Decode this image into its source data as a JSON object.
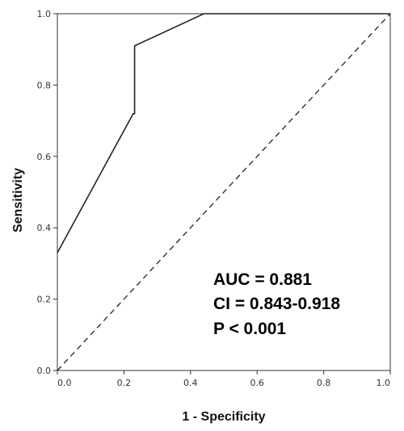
{
  "chart_data": {
    "type": "line",
    "xlabel": "1 - Specificity",
    "ylabel": "Sensitivity",
    "xlim": [
      0,
      1
    ],
    "ylim": [
      0,
      1
    ],
    "x_ticks": [
      "0.0",
      "0.2",
      "0.4",
      "0.6",
      "0.8",
      "1.0"
    ],
    "y_ticks": [
      "0.0",
      "0.2",
      "0.4",
      "0.6",
      "0.8",
      "1.0"
    ],
    "grid": false,
    "series": [
      {
        "style": "solid",
        "x": [
          0.0,
          0.228,
          0.232,
          0.232,
          0.44,
          1.0
        ],
        "y": [
          0.33,
          0.72,
          0.72,
          0.91,
          1.0,
          1.0
        ]
      },
      {
        "style": "dashed",
        "x": [
          0.0,
          1.0
        ],
        "y": [
          0.0,
          1.0
        ]
      }
    ],
    "annotations": [
      "AUC = 0.881",
      "CI = 0.843-0.918",
      "P < 0.001"
    ]
  }
}
